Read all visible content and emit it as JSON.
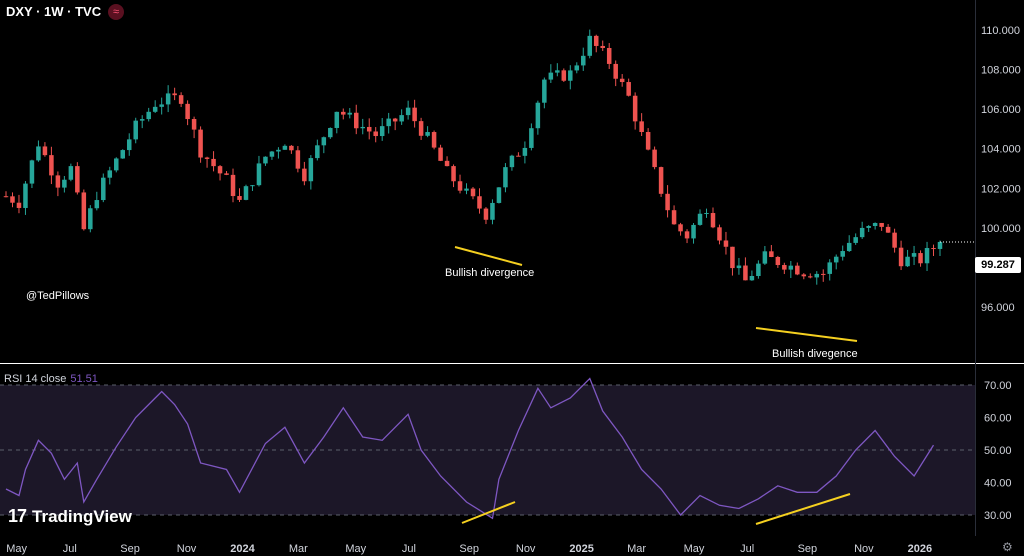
{
  "header": {
    "title": "DXY · 1W · TVC",
    "badge_icon": "rate-icon"
  },
  "watermark_handle": "@TedPillows",
  "annotations": {
    "bullish_1": "Bullish divergence",
    "bullish_2": "Bullish divegence"
  },
  "current_price": "99.287",
  "rsi": {
    "title": "RSI 14 close",
    "value": "51.51"
  },
  "logo_text": "TradingView",
  "colors": {
    "up": "#26a69a",
    "down": "#ef5350",
    "rsi_line": "#7e57c2",
    "rsi_band": "#1c1728",
    "annotation_line": "#f5d020",
    "background": "#000000"
  },
  "chart_data": [
    {
      "type": "candlestick",
      "title": "DXY · 1W · TVC",
      "ylim": [
        95.0,
        110.8
      ],
      "y_ticks": [
        "110.000",
        "108.000",
        "106.000",
        "104.000",
        "102.000",
        "100.000",
        "98.000",
        "96.000"
      ],
      "x_ticks": [
        "May",
        "Jul",
        "Sep",
        "Nov",
        "2024",
        "Mar",
        "May",
        "Jul",
        "Sep",
        "Nov",
        "2025",
        "Mar",
        "May",
        "Jul",
        "Sep",
        "Nov",
        "2026"
      ],
      "x_range": [
        "2023-04-21",
        "2026-01-23"
      ],
      "last_price": 99.287,
      "close_path": [
        [
          "2023-04-21",
          101.6
        ],
        [
          "2023-05-05",
          101.3
        ],
        [
          "2023-05-26",
          104.3
        ],
        [
          "2023-06-16",
          102.3
        ],
        [
          "2023-06-30",
          103.0
        ],
        [
          "2023-07-14",
          99.9
        ],
        [
          "2023-07-28",
          101.7
        ],
        [
          "2023-08-18",
          103.4
        ],
        [
          "2023-09-08",
          105.1
        ],
        [
          "2023-09-29",
          106.3
        ],
        [
          "2023-10-06",
          106.4
        ],
        [
          "2023-10-27",
          106.6
        ],
        [
          "2023-11-17",
          103.9
        ],
        [
          "2023-12-15",
          102.4
        ],
        [
          "2023-12-29",
          101.3
        ],
        [
          "2024-01-26",
          103.6
        ],
        [
          "2024-02-16",
          104.4
        ],
        [
          "2024-03-08",
          102.7
        ],
        [
          "2024-04-12",
          106.0
        ],
        [
          "2024-05-03",
          105.3
        ],
        [
          "2024-05-24",
          104.7
        ],
        [
          "2024-06-28",
          105.9
        ],
        [
          "2024-07-19",
          104.5
        ],
        [
          "2024-08-09",
          102.8
        ],
        [
          "2024-08-30",
          101.7
        ],
        [
          "2024-09-20",
          100.7
        ],
        [
          "2024-10-11",
          102.9
        ],
        [
          "2024-11-01",
          104.3
        ],
        [
          "2024-11-22",
          107.5
        ],
        [
          "2024-12-20",
          107.8
        ],
        [
          "2025-01-10",
          109.5
        ],
        [
          "2025-01-31",
          108.4
        ],
        [
          "2025-02-21",
          106.6
        ],
        [
          "2025-03-14",
          103.7
        ],
        [
          "2025-04-11",
          100.1
        ],
        [
          "2025-04-25",
          99.6
        ],
        [
          "2025-05-16",
          101.1
        ],
        [
          "2025-06-13",
          98.2
        ],
        [
          "2025-06-27",
          97.3
        ],
        [
          "2025-07-18",
          98.5
        ],
        [
          "2025-08-08",
          98.2
        ],
        [
          "2025-08-29",
          97.8
        ],
        [
          "2025-09-19",
          97.7
        ],
        [
          "2025-10-10",
          99.0
        ],
        [
          "2025-10-31",
          99.8
        ],
        [
          "2025-11-21",
          100.2
        ],
        [
          "2025-12-12",
          98.4
        ],
        [
          "2026-01-02",
          98.4
        ],
        [
          "2026-01-23",
          99.29
        ]
      ]
    },
    {
      "type": "line",
      "title": "RSI 14 close",
      "ylim": [
        27,
        72
      ],
      "y_ticks": [
        "70.00",
        "60.00",
        "50.00",
        "40.00",
        "30.00"
      ],
      "band": [
        30,
        70
      ],
      "last_value": 51.51,
      "series": [
        {
          "values": [
            [
              "2023-04-21",
              38
            ],
            [
              "2023-05-05",
              36
            ],
            [
              "2023-05-12",
              44
            ],
            [
              "2023-05-26",
              53
            ],
            [
              "2023-06-09",
              49
            ],
            [
              "2023-06-23",
              41
            ],
            [
              "2023-07-07",
              46
            ],
            [
              "2023-07-14",
              34
            ],
            [
              "2023-07-28",
              41
            ],
            [
              "2023-08-18",
              51
            ],
            [
              "2023-09-08",
              60
            ],
            [
              "2023-09-29",
              66
            ],
            [
              "2023-10-06",
              68
            ],
            [
              "2023-10-20",
              64
            ],
            [
              "2023-11-03",
              58
            ],
            [
              "2023-11-17",
              46
            ],
            [
              "2023-12-15",
              44
            ],
            [
              "2023-12-29",
              37
            ],
            [
              "2024-01-26",
              52
            ],
            [
              "2024-02-16",
              57
            ],
            [
              "2024-03-08",
              46
            ],
            [
              "2024-03-29",
              54
            ],
            [
              "2024-04-19",
              63
            ],
            [
              "2024-05-10",
              54
            ],
            [
              "2024-05-31",
              53
            ],
            [
              "2024-06-28",
              61
            ],
            [
              "2024-07-12",
              50
            ],
            [
              "2024-08-02",
              42
            ],
            [
              "2024-08-30",
              34
            ],
            [
              "2024-09-27",
              29
            ],
            [
              "2024-10-04",
              41
            ],
            [
              "2024-10-25",
              56
            ],
            [
              "2024-11-15",
              69
            ],
            [
              "2024-11-29",
              63
            ],
            [
              "2024-12-20",
              66
            ],
            [
              "2025-01-10",
              72
            ],
            [
              "2025-01-24",
              62
            ],
            [
              "2025-02-14",
              54
            ],
            [
              "2025-03-07",
              44
            ],
            [
              "2025-03-28",
              38
            ],
            [
              "2025-04-18",
              30
            ],
            [
              "2025-05-09",
              36
            ],
            [
              "2025-05-30",
              33
            ],
            [
              "2025-06-20",
              32
            ],
            [
              "2025-07-11",
              35
            ],
            [
              "2025-08-01",
              39
            ],
            [
              "2025-08-22",
              37
            ],
            [
              "2025-09-12",
              37
            ],
            [
              "2025-10-03",
              42
            ],
            [
              "2025-10-24",
              50
            ],
            [
              "2025-11-14",
              56
            ],
            [
              "2025-12-05",
              48
            ],
            [
              "2025-12-26",
              42
            ],
            [
              "2026-01-16",
              51.51
            ]
          ]
        }
      ]
    }
  ]
}
